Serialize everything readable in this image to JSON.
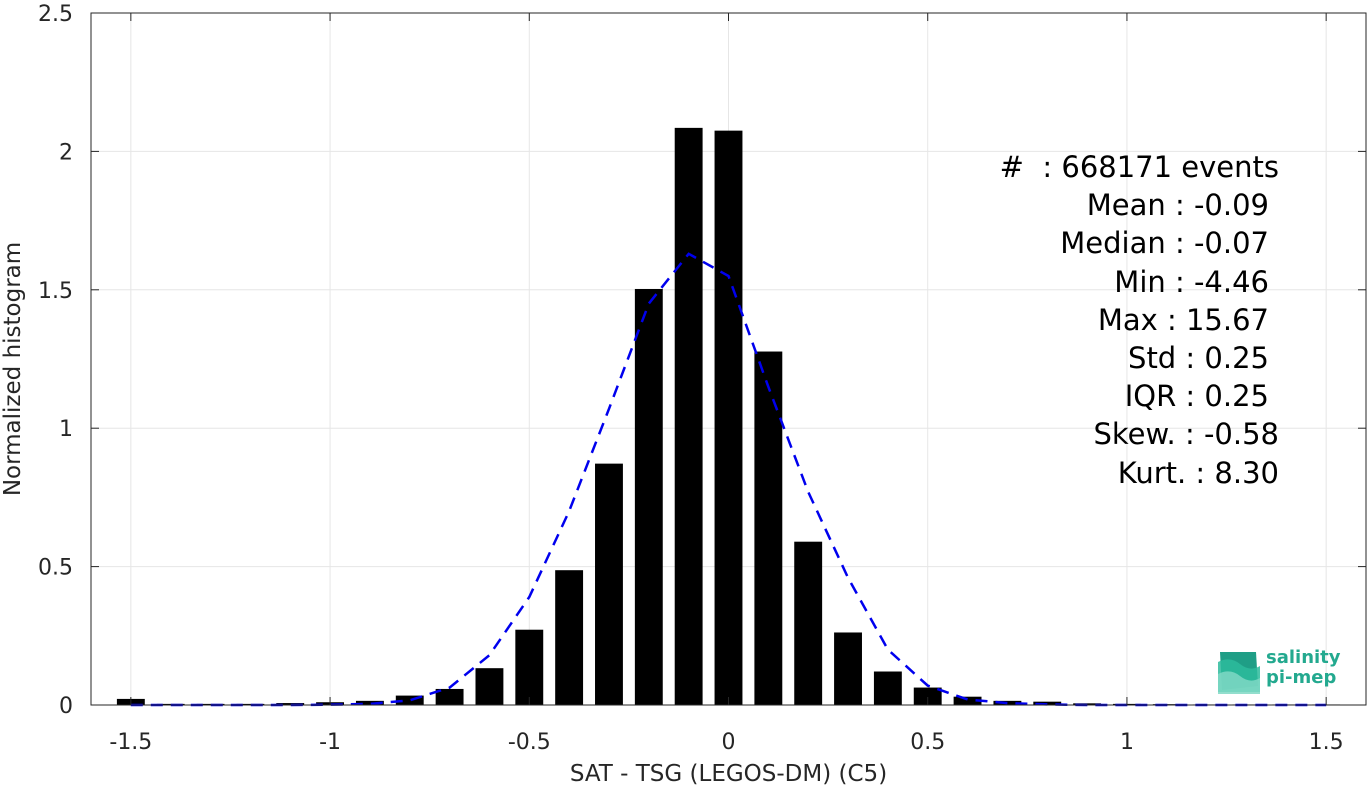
{
  "chart_data": {
    "type": "bar",
    "xlabel": "SAT - TSG (LEGOS-DM) (C5)",
    "ylabel": "Normalized histogram",
    "xlim": [
      -1.6,
      1.6
    ],
    "ylim": [
      0,
      2.5
    ],
    "x_ticks": [
      "-1.5",
      "-1",
      "-0.5",
      "0",
      "0.5",
      "1",
      "1.5"
    ],
    "y_ticks": [
      "0",
      "0.5",
      "1",
      "1.5",
      "2",
      "2.5"
    ],
    "grid": true,
    "bar_color": "#000000",
    "bins": [
      -1.5,
      -1.4,
      -1.3,
      -1.2,
      -1.1,
      -1.0,
      -0.9,
      -0.8,
      -0.7,
      -0.6,
      -0.5,
      -0.4,
      -0.3,
      -0.2,
      -0.1,
      0.0,
      0.1,
      0.2,
      0.3,
      0.4,
      0.5,
      0.6,
      0.7,
      0.8,
      0.9,
      1.0,
      1.1,
      1.2,
      1.3,
      1.4,
      1.5
    ],
    "values": [
      0.022,
      0.004,
      0.004,
      0.004,
      0.007,
      0.01,
      0.015,
      0.034,
      0.058,
      0.133,
      0.272,
      0.487,
      0.872,
      1.503,
      2.085,
      2.075,
      1.277,
      0.59,
      0.262,
      0.121,
      0.063,
      0.03,
      0.015,
      0.012,
      0.006,
      0.004,
      0.003,
      0.002,
      0.002,
      0.002,
      0.002
    ],
    "fit_curve": {
      "style": "dashed",
      "color": "#0000ee",
      "x": [
        -1.5,
        -1.4,
        -1.3,
        -1.2,
        -1.1,
        -1.0,
        -0.9,
        -0.8,
        -0.7,
        -0.6,
        -0.5,
        -0.4,
        -0.3,
        -0.2,
        -0.1,
        0.0,
        0.1,
        0.2,
        0.3,
        0.4,
        0.5,
        0.6,
        0.7,
        0.8,
        0.9,
        1.0,
        1.1,
        1.2,
        1.3,
        1.4,
        1.5
      ],
      "y": [
        0.0,
        0.0,
        0.0,
        0.0,
        0.0,
        0.001,
        0.004,
        0.017,
        0.063,
        0.18,
        0.39,
        0.7,
        1.07,
        1.45,
        1.63,
        1.55,
        1.15,
        0.77,
        0.46,
        0.2,
        0.07,
        0.02,
        0.007,
        0.002,
        0.0,
        0.0,
        0.0,
        0.0,
        0.0,
        0.0,
        0.0
      ]
    },
    "annotations": [
      "#  : 668171 events",
      "Mean : -0.09",
      "Median : -0.07",
      "Min : -4.46",
      "Max : 15.67",
      "Std : 0.25",
      "IQR : 0.25",
      "Skew. : -0.58",
      "Kurt. : 8.30"
    ]
  },
  "logo": {
    "line1": "salinity",
    "line2": "pi-mep"
  }
}
